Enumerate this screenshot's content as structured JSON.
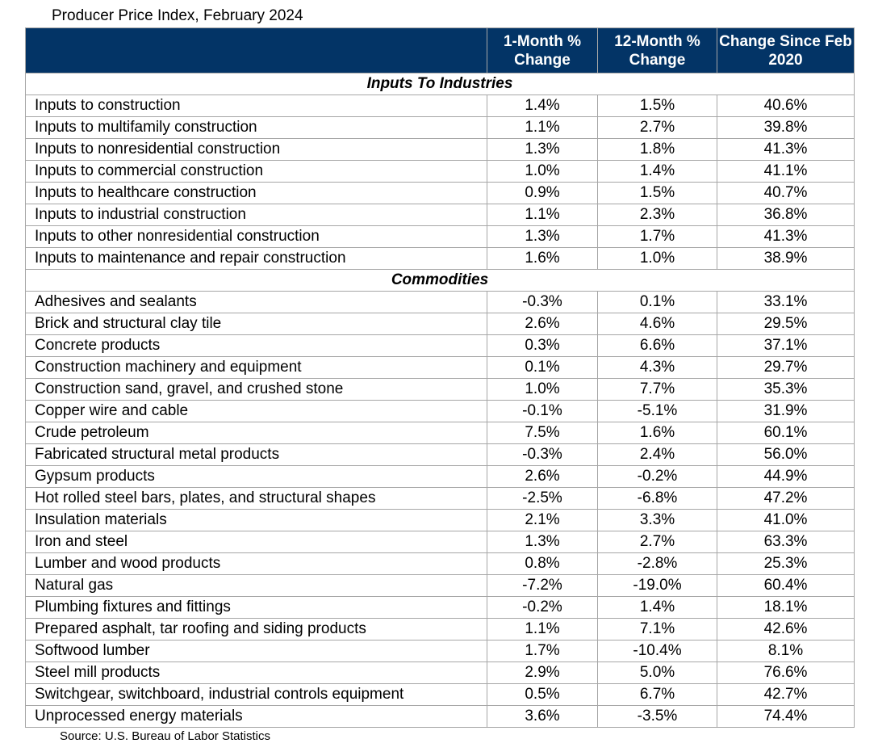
{
  "title": "Producer Price Index, February 2024",
  "source": "Source: U.S. Bureau of Labor Statistics",
  "colors": {
    "header_bg": "#033466",
    "header_text": "#ffffff",
    "border": "#a6a6a6"
  },
  "chart_data": {
    "type": "table",
    "title": "Producer Price Index, February 2024",
    "columns": [
      "",
      "1-Month % Change",
      "12-Month % Change",
      "Change Since Feb 2020"
    ],
    "sections": [
      {
        "name": "Inputs To Industries",
        "rows": [
          [
            "Inputs to construction",
            "1.4%",
            "1.5%",
            "40.6%"
          ],
          [
            "Inputs to multifamily construction",
            "1.1%",
            "2.7%",
            "39.8%"
          ],
          [
            "Inputs to nonresidential construction",
            "1.3%",
            "1.8%",
            "41.3%"
          ],
          [
            "Inputs to commercial construction",
            "1.0%",
            "1.4%",
            "41.1%"
          ],
          [
            "Inputs to healthcare construction",
            "0.9%",
            "1.5%",
            "40.7%"
          ],
          [
            "Inputs to industrial construction",
            "1.1%",
            "2.3%",
            "36.8%"
          ],
          [
            "Inputs to other nonresidential construction",
            "1.3%",
            "1.7%",
            "41.3%"
          ],
          [
            "Inputs to maintenance and repair construction",
            "1.6%",
            "1.0%",
            "38.9%"
          ]
        ]
      },
      {
        "name": "Commodities",
        "rows": [
          [
            "Adhesives and sealants",
            "-0.3%",
            "0.1%",
            "33.1%"
          ],
          [
            "Brick and structural clay tile",
            "2.6%",
            "4.6%",
            "29.5%"
          ],
          [
            "Concrete products",
            "0.3%",
            "6.6%",
            "37.1%"
          ],
          [
            "Construction machinery and equipment",
            "0.1%",
            "4.3%",
            "29.7%"
          ],
          [
            "Construction sand, gravel, and crushed stone",
            "1.0%",
            "7.7%",
            "35.3%"
          ],
          [
            "Copper wire and cable",
            "-0.1%",
            "-5.1%",
            "31.9%"
          ],
          [
            "Crude petroleum",
            "7.5%",
            "1.6%",
            "60.1%"
          ],
          [
            "Fabricated structural metal products",
            "-0.3%",
            "2.4%",
            "56.0%"
          ],
          [
            "Gypsum products",
            "2.6%",
            "-0.2%",
            "44.9%"
          ],
          [
            "Hot rolled steel bars, plates, and structural shapes",
            "-2.5%",
            "-6.8%",
            "47.2%"
          ],
          [
            "Insulation materials",
            "2.1%",
            "3.3%",
            "41.0%"
          ],
          [
            "Iron and steel",
            "1.3%",
            "2.7%",
            "63.3%"
          ],
          [
            "Lumber and wood products",
            "0.8%",
            "-2.8%",
            "25.3%"
          ],
          [
            "Natural gas",
            "-7.2%",
            "-19.0%",
            "60.4%"
          ],
          [
            "Plumbing fixtures and fittings",
            "-0.2%",
            "1.4%",
            "18.1%"
          ],
          [
            "Prepared asphalt, tar roofing and siding products",
            "1.1%",
            "7.1%",
            "42.6%"
          ],
          [
            "Softwood lumber",
            "1.7%",
            "-10.4%",
            "8.1%"
          ],
          [
            "Steel mill products",
            "2.9%",
            "5.0%",
            "76.6%"
          ],
          [
            "Switchgear, switchboard, industrial controls equipment",
            "0.5%",
            "6.7%",
            "42.7%"
          ],
          [
            "Unprocessed energy materials",
            "3.6%",
            "-3.5%",
            "74.4%"
          ]
        ]
      }
    ]
  }
}
